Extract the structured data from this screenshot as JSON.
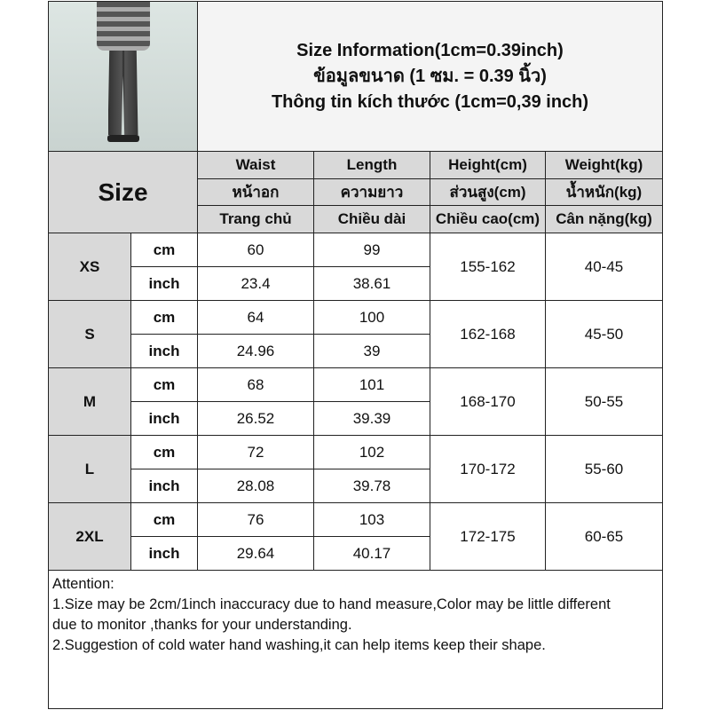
{
  "title_lines": [
    "Size Information(1cm=0.39inch)",
    "ข้อมูลขนาด (1 ซม. = 0.39 นิ้ว)",
    "Thông tin kích thước (1cm=0,39 inch)"
  ],
  "size_label": "Size",
  "columns": [
    [
      "Waist",
      "หน้าอก",
      "Trang chủ"
    ],
    [
      "Length",
      "ความยาว",
      "Chiều dài"
    ],
    [
      "Height(cm)",
      "ส่วนสูง(cm)",
      "Chiều cao(cm)"
    ],
    [
      "Weight(kg)",
      "น้ำหนัก(kg)",
      "Cân nặng(kg)"
    ]
  ],
  "units": {
    "cm": "cm",
    "inch": "inch"
  },
  "rows": [
    {
      "size": "XS",
      "cm": [
        "60",
        "99"
      ],
      "inch": [
        "23.4",
        "38.61"
      ],
      "height": "155-162",
      "weight": "40-45"
    },
    {
      "size": "S",
      "cm": [
        "64",
        "100"
      ],
      "inch": [
        "24.96",
        "39"
      ],
      "height": "162-168",
      "weight": "45-50"
    },
    {
      "size": "M",
      "cm": [
        "68",
        "101"
      ],
      "inch": [
        "26.52",
        "39.39"
      ],
      "height": "168-170",
      "weight": "50-55"
    },
    {
      "size": "L",
      "cm": [
        "72",
        "102"
      ],
      "inch": [
        "28.08",
        "39.78"
      ],
      "height": "170-172",
      "weight": "55-60"
    },
    {
      "size": "2XL",
      "cm": [
        "76",
        "103"
      ],
      "inch": [
        "29.64",
        "40.17"
      ],
      "height": "172-175",
      "weight": "60-65"
    }
  ],
  "notes": [
    "Attention:",
    "1.Size may be 2cm/1inch inaccuracy due to hand measure,Color may be little different",
    "due to monitor ,thanks for your understanding.",
    "2.Suggestion of cold water hand washing,it can help items keep their shape."
  ]
}
